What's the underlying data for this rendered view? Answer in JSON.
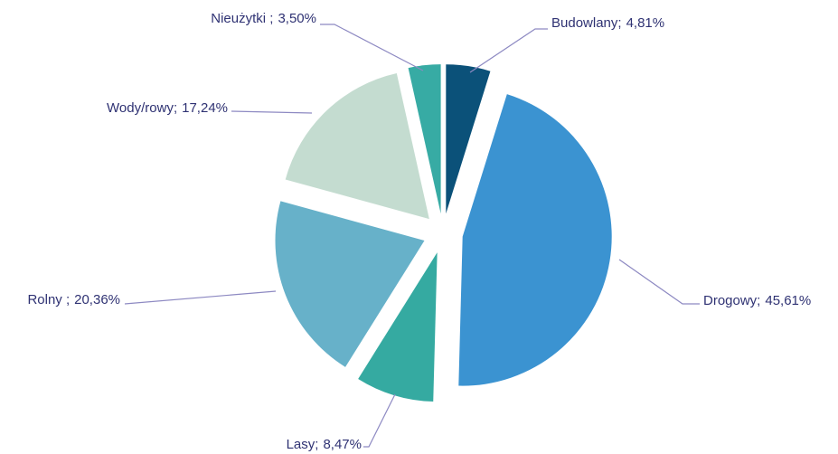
{
  "chart_data": {
    "type": "pie",
    "categories": [
      "Budowlany;",
      "Drogowy;",
      "Lasy;",
      "Rolny ;",
      "Wody/rowy;",
      "Nieużytki ;"
    ],
    "values": [
      4.81,
      45.61,
      8.47,
      20.36,
      17.24,
      3.5
    ],
    "value_labels": [
      "4,81%",
      "45,61%",
      "8,47%",
      "20,36%",
      "17,24%",
      "3,50%"
    ],
    "colors": [
      "#0b5179",
      "#3b93d1",
      "#35aaa1",
      "#67b1c9",
      "#c4dcd0",
      "#37aba4"
    ]
  }
}
